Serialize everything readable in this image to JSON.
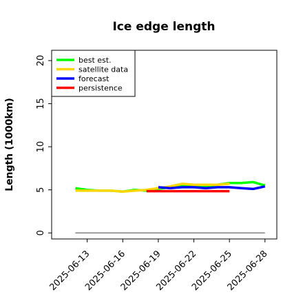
{
  "chart_data": {
    "type": "line",
    "title": "Ice edge length",
    "xlabel": "",
    "ylabel": "Length (1000km)",
    "ylim": [
      -0.7,
      21.2
    ],
    "xlim": [
      "2025-06-10",
      "2025-06-29"
    ],
    "yticks": [
      0,
      5,
      10,
      15,
      20
    ],
    "yticklabels": [
      "0",
      "5",
      "10",
      "15",
      "20"
    ],
    "xticks": [
      "2025-06-13",
      "2025-06-16",
      "2025-06-19",
      "2025-06-22",
      "2025-06-25",
      "2025-06-28"
    ],
    "xticklabels": [
      "2025-06-13",
      "2025-06-16",
      "2025-06-19",
      "2025-06-22",
      "2025-06-25",
      "2025-06-28"
    ],
    "highlight_tick": "2025-06-19",
    "highlight_color": "#228b22",
    "grid": false,
    "legend": "top-left",
    "baseline": {
      "y": 0.0,
      "x": [
        "2025-06-12",
        "2025-06-28"
      ],
      "color": "#808080"
    },
    "series": [
      {
        "name": "best est.",
        "color": "#00ff00",
        "x": [
          "2025-06-12",
          "2025-06-13",
          "2025-06-14",
          "2025-06-15",
          "2025-06-16",
          "2025-06-17",
          "2025-06-18",
          "2025-06-19",
          "2025-06-20",
          "2025-06-21",
          "2025-06-22",
          "2025-06-23",
          "2025-06-24",
          "2025-06-25",
          "2025-06-26",
          "2025-06-27",
          "2025-06-28"
        ],
        "y": [
          5.2,
          5.0,
          4.9,
          4.9,
          4.8,
          5.0,
          4.9,
          5.1,
          5.3,
          5.5,
          5.5,
          5.4,
          5.6,
          5.8,
          5.8,
          5.9,
          5.5
        ]
      },
      {
        "name": "satellite data",
        "color": "#ffd700",
        "x": [
          "2025-06-12",
          "2025-06-13",
          "2025-06-14",
          "2025-06-15",
          "2025-06-16",
          "2025-06-17",
          "2025-06-18",
          "2025-06-19",
          "2025-06-20",
          "2025-06-21",
          "2025-06-22",
          "2025-06-23",
          "2025-06-24",
          "2025-06-25"
        ],
        "y": [
          4.9,
          4.9,
          4.9,
          4.9,
          4.8,
          4.9,
          5.0,
          5.2,
          5.4,
          5.7,
          5.6,
          5.6,
          5.6,
          5.7
        ]
      },
      {
        "name": "forecast",
        "color": "#0000ff",
        "x": [
          "2025-06-19",
          "2025-06-20",
          "2025-06-21",
          "2025-06-22",
          "2025-06-23",
          "2025-06-24",
          "2025-06-25",
          "2025-06-26",
          "2025-06-27",
          "2025-06-28"
        ],
        "y": [
          5.3,
          5.2,
          5.3,
          5.3,
          5.2,
          5.3,
          5.3,
          5.2,
          5.1,
          5.4
        ]
      },
      {
        "name": "persistence",
        "color": "#ff0000",
        "x": [
          "2025-06-18",
          "2025-06-25"
        ],
        "y": [
          4.85,
          4.85
        ]
      }
    ]
  }
}
